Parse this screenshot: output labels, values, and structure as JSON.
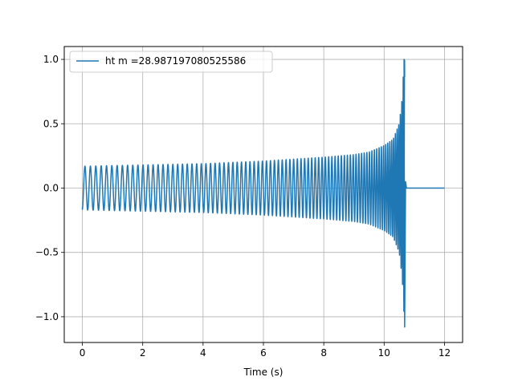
{
  "chart_data": {
    "type": "line",
    "title": "",
    "xlabel": "Time (s)",
    "ylabel": "",
    "xlim": [
      -0.6,
      12.6
    ],
    "ylim": [
      -1.2,
      1.1
    ],
    "x_ticks": [
      0,
      2,
      4,
      6,
      8,
      10,
      12
    ],
    "y_ticks": [
      -1.0,
      -0.5,
      0.0,
      0.5,
      1.0
    ],
    "x_tick_labels": [
      "0",
      "2",
      "4",
      "6",
      "8",
      "10",
      "12"
    ],
    "y_tick_labels": [
      "−1.0",
      "−0.5",
      "0.0",
      "0.5",
      "1.0"
    ],
    "grid": true,
    "legend": {
      "position": "top-left"
    },
    "series": [
      {
        "name": "ht m =28.987197080525586",
        "color": "#1f77b4",
        "description_points": {
          "envelope": {
            "t": [
              0,
              2,
              4,
              6,
              8,
              9,
              9.5,
              10,
              10.3,
              10.5,
              10.6,
              10.65,
              10.68
            ],
            "amplitude": [
              0.17,
              0.18,
              0.19,
              0.21,
              0.24,
              0.26,
              0.28,
              0.33,
              0.38,
              0.5,
              0.7,
              0.95,
              1.0
            ]
          },
          "merger_time": 10.68,
          "min_value": -1.08,
          "max_value": 1.0,
          "start_value": -0.15,
          "end_time": 12.0,
          "post_merger_value": 0.0
        }
      }
    ]
  }
}
